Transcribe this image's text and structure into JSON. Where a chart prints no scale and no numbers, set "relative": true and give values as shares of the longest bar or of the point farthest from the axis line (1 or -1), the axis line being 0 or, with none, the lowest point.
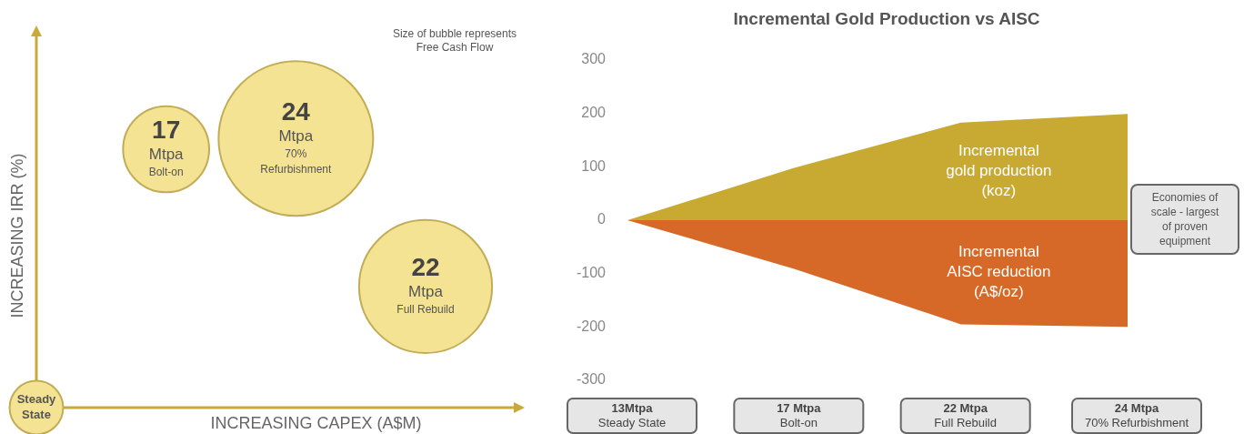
{
  "chart_data": [
    {
      "type": "bubble",
      "relative": true,
      "xlabel": "INCREASING CAPEX (A$M)",
      "ylabel": "INCREASING IRR (%)",
      "color": "#f5e394",
      "categories": [
        "Steady\nState",
        "17\nMtpa\nBolt-on",
        "24\nMtpa\n70%\nRefurbishment",
        "22\nMtpa\nFull Rebuild"
      ],
      "values": [
        0,
        0.96,
        1,
        0.45
      ],
      "sizes": [
        0.12,
        0.31,
        1,
        0.74
      ],
      "annotations": [
        "Size of bubble represents\nFree Cash Flow"
      ]
    },
    {
      "type": "area",
      "title": "Incremental Gold Production vs AISC",
      "categories": [
        "13Mtpa\nSteady State",
        "17 Mtpa\nBolt-on",
        "22 Mtpa\nFull Rebuild",
        "24 Mtpa\n70% Refurbishment"
      ],
      "series": [
        {
          "name": "Incremental\ngold production\n(koz)",
          "color": "#c8aa32",
          "values": [
            0,
            98,
            183,
            199
          ]
        },
        {
          "name": "Incremental\nAISC reduction\n(A$/oz)",
          "color": "#d66828",
          "values": [
            0,
            -91,
            -195,
            -200
          ]
        }
      ],
      "ylim": [
        -300,
        300
      ],
      "yticks": [
        -300,
        -200,
        -100,
        0,
        100,
        200,
        300
      ],
      "annotations": [
        "Economies of\nscale - largest\nof proven\nequipment"
      ]
    }
  ]
}
